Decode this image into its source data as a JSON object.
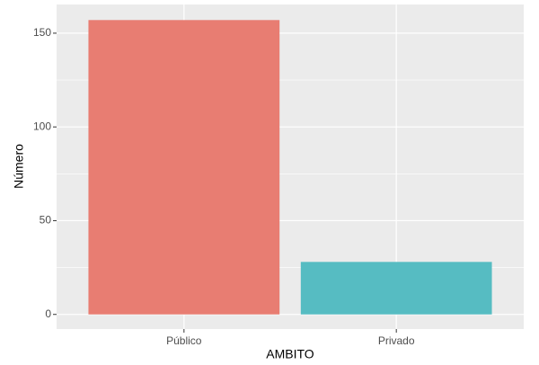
{
  "chart_data": {
    "type": "bar",
    "categories": [
      "Público",
      "Privado"
    ],
    "values": [
      157,
      28
    ],
    "colors": [
      "#e87d72",
      "#56bcc2"
    ],
    "xlabel": "AMBITO",
    "ylabel": "Número",
    "ylim": [
      -7.8,
      165.3
    ],
    "yticks": [
      0,
      50,
      100,
      150
    ],
    "yminor": [
      25,
      75,
      125
    ],
    "grid": true
  }
}
